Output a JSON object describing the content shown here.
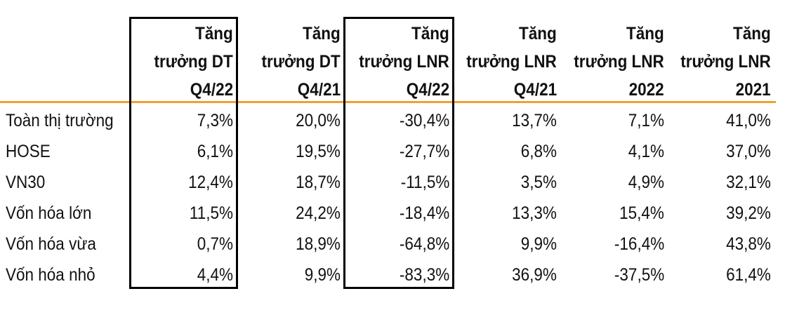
{
  "table": {
    "header": [
      [
        "Tăng",
        "trưởng DT",
        "Q4/22"
      ],
      [
        "Tăng",
        "trưởng DT",
        "Q4/21"
      ],
      [
        "Tăng",
        "trưởng LNR",
        "Q4/22"
      ],
      [
        "Tăng",
        "trưởng LNR",
        "Q4/21"
      ],
      [
        "Tăng",
        "trưởng LNR",
        "2022"
      ],
      [
        "Tăng",
        "trưởng LNR",
        "2021"
      ]
    ],
    "rows": [
      [
        "Toàn thị trường",
        "7,3%",
        "20,0%",
        "-30,4%",
        "13,7%",
        "7,1%",
        "41,0%"
      ],
      [
        "HOSE",
        "6,1%",
        "19,5%",
        "-27,7%",
        "6,8%",
        "4,1%",
        "37,0%"
      ],
      [
        "VN30",
        "12,4%",
        "18,7%",
        "-11,5%",
        "3,5%",
        "4,9%",
        "32,1%"
      ],
      [
        "Vốn hóa lớn",
        "11,5%",
        "24,2%",
        "-18,4%",
        "13,3%",
        "15,4%",
        "39,2%"
      ],
      [
        "Vốn hóa vừa",
        "0,7%",
        "18,9%",
        "-64,8%",
        "9,9%",
        "-16,4%",
        "43,8%"
      ],
      [
        "Vốn hóa nhỏ",
        "4,4%",
        "9,9%",
        "-83,3%",
        "36,9%",
        "-37,5%",
        "61,4%"
      ]
    ]
  }
}
